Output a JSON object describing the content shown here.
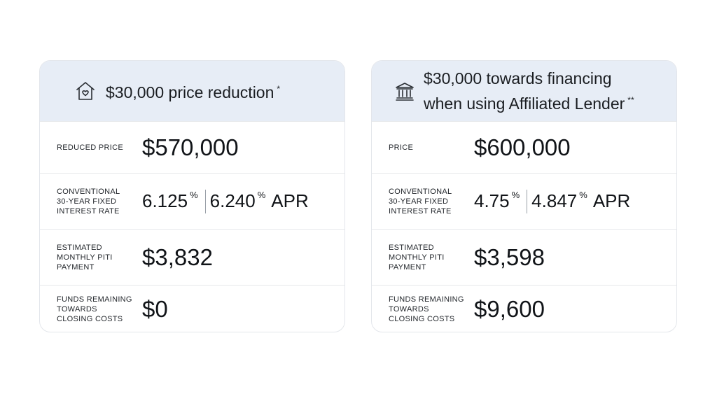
{
  "cards": [
    {
      "icon": "house-heart-icon",
      "title": "$30,000 price reduction",
      "title_mark": "*",
      "rows": {
        "price_label": "Reduced price",
        "price_value": "$570,000",
        "rate_label": "Conventional\n30-year fixed\ninterest rate",
        "rate_value": "6.125",
        "rate_pct": "%",
        "apr_value": "6.240",
        "apr_pct": "%",
        "apr_label": "APR",
        "payment_label": "Estimated\nmonthly PITI\npayment",
        "payment_value": "$3,832",
        "funds_label": "Funds remaining\ntowards\nclosing costs",
        "funds_value": "$0"
      }
    },
    {
      "icon": "bank-building-icon",
      "title_line1": "$30,000 towards financing",
      "title_line2": "when using Affiliated Lender",
      "title_mark": "**",
      "rows": {
        "price_label": "Price",
        "price_value": "$600,000",
        "rate_label": "Conventional\n30-year fixed\ninterest rate",
        "rate_value": "4.75",
        "rate_pct": "%",
        "apr_value": "4.847",
        "apr_pct": "%",
        "apr_label": "APR",
        "payment_label": "Estimated\nmonthly PITI\npayment",
        "payment_value": "$3,598",
        "funds_label": "Funds remaining\ntowards\nclosing costs",
        "funds_value": "$9,600"
      }
    }
  ],
  "colors": {
    "header_bg": "#e7edf6",
    "border": "#e3e6eb",
    "text": "#111418"
  }
}
